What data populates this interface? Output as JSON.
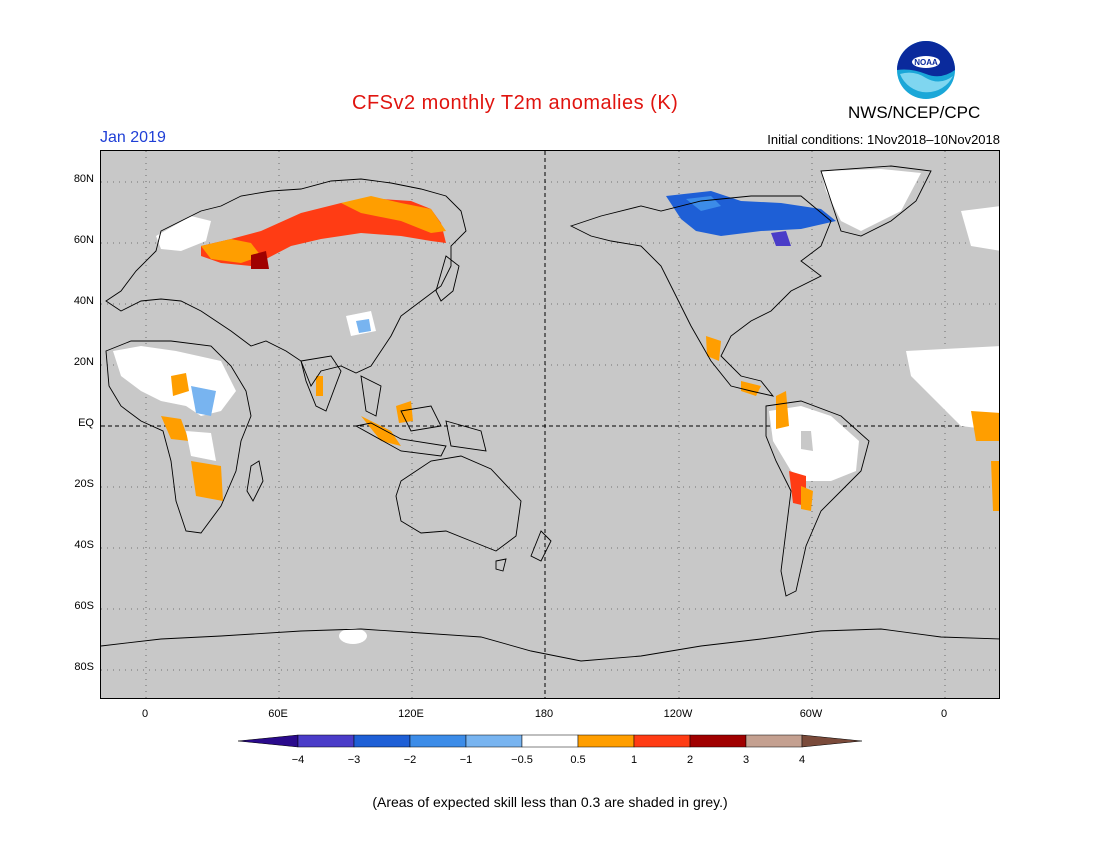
{
  "title": "CFSv2 monthly T2m anomalies (K)",
  "month": "Jan 2019",
  "initial_conditions": "Initial conditions: 1Nov2018–10Nov2018",
  "agency": "NWS/NCEP/CPC",
  "logo_text": "NOAA",
  "lat_labels": [
    "80N",
    "60N",
    "40N",
    "20N",
    "EQ",
    "20S",
    "40S",
    "60S",
    "80S"
  ],
  "lon_labels": [
    "0",
    "60E",
    "120E",
    "180",
    "120W",
    "60W",
    "0"
  ],
  "colorbar": {
    "colors": [
      "#2a0a8c",
      "#4a3cc8",
      "#1e5fd6",
      "#3c8ce8",
      "#78b4f0",
      "#ffffff",
      "#ff9e00",
      "#ff3c14",
      "#a00000",
      "#c4a090",
      "#7a4a3a"
    ],
    "tick_labels": [
      "−4",
      "−3",
      "−2",
      "−1",
      "−0.5",
      "0.5",
      "1",
      "2",
      "3",
      "4"
    ]
  },
  "footnote": "(Areas of expected skill less than 0.3 are shaded in grey.)"
}
